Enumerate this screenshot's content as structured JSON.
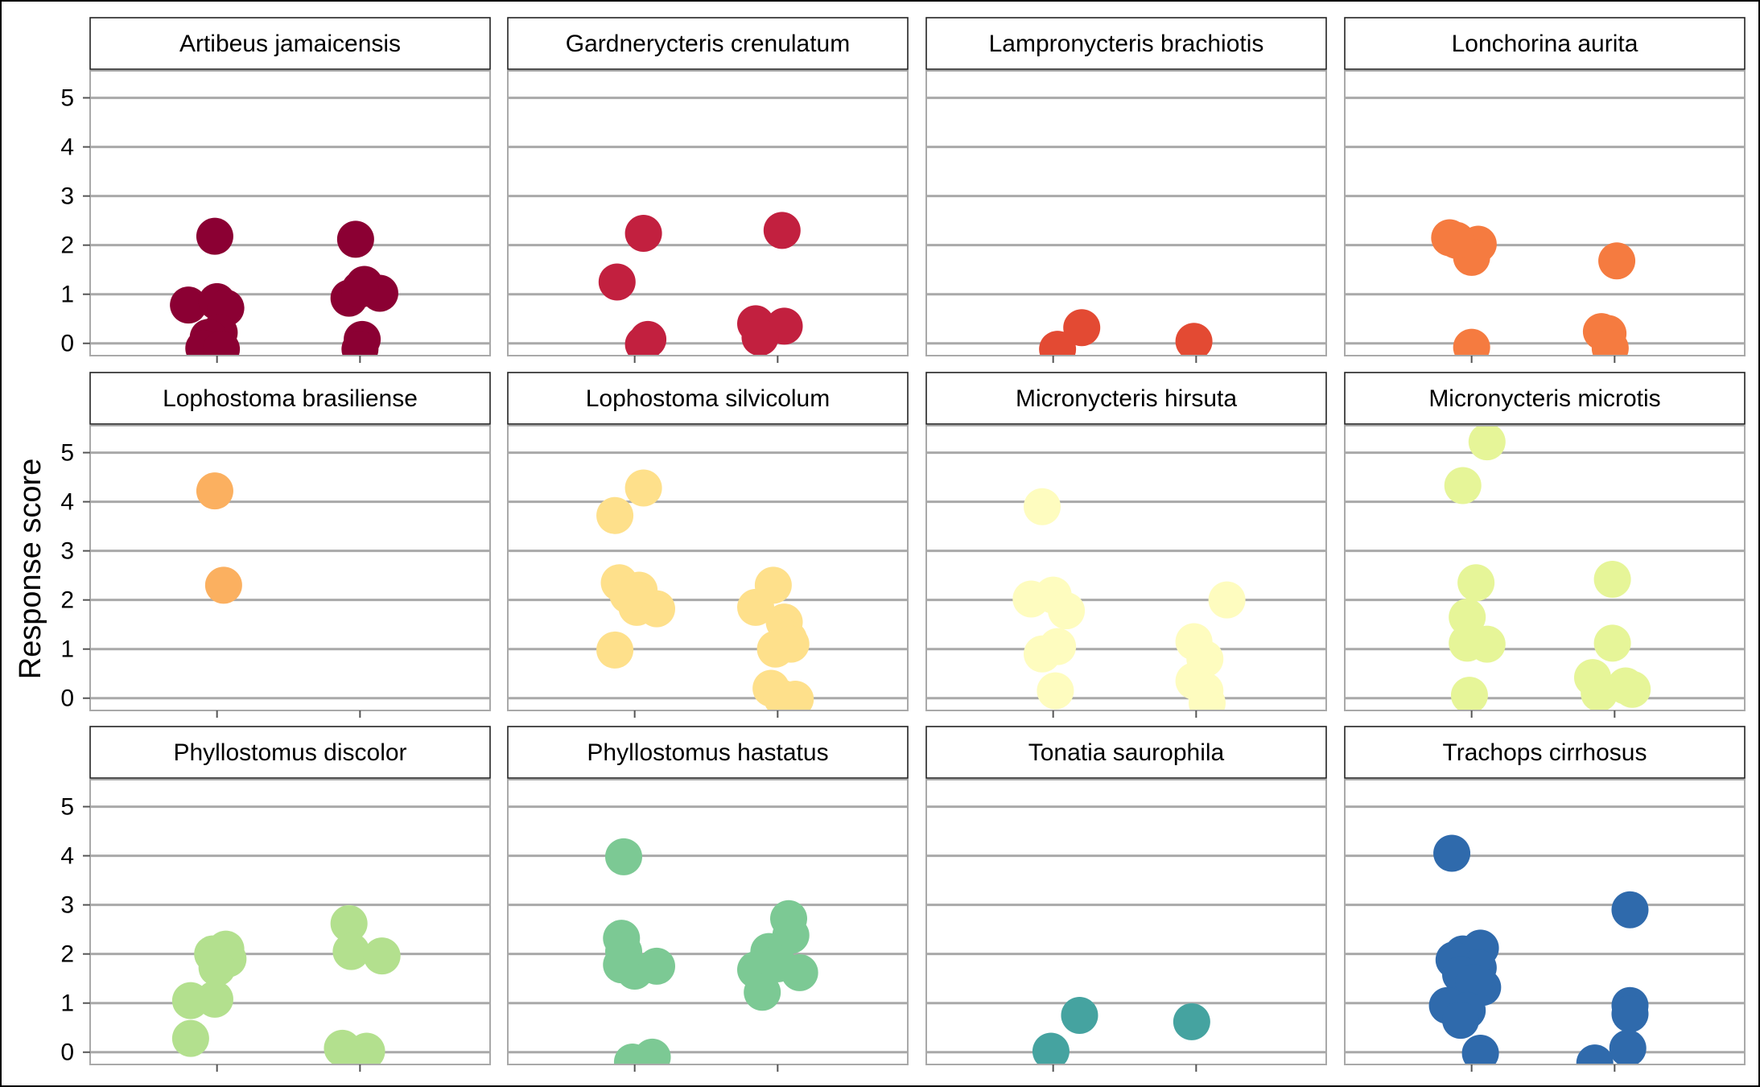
{
  "chart_data": {
    "type": "scatter",
    "ylabel": "Response score",
    "xlabel": "",
    "ylim": [
      -0.25,
      5.55
    ],
    "y_ticks": [
      0,
      1,
      2,
      3,
      4,
      5
    ],
    "x_positions": 2,
    "grid": "horizontal",
    "layout": {
      "rows": 3,
      "cols": 4
    },
    "panels": [
      {
        "title": "Artibeus jamaicensis",
        "color": "#8b0033",
        "groups": [
          [
            [
              -0.01,
              2.18
            ],
            [
              -0.13,
              0.78
            ],
            [
              0.0,
              0.85
            ],
            [
              0.04,
              0.72
            ],
            [
              0.01,
              0.22
            ],
            [
              -0.04,
              0.12
            ],
            [
              -0.06,
              -0.1
            ],
            [
              0.02,
              -0.12
            ]
          ],
          [
            [
              -0.02,
              2.12
            ],
            [
              0.02,
              1.2
            ],
            [
              0.09,
              1.02
            ],
            [
              -0.05,
              0.92
            ],
            [
              0.0,
              1.1
            ],
            [
              0.01,
              0.08
            ],
            [
              0.0,
              -0.12
            ]
          ]
        ]
      },
      {
        "title": "Gardnerycteris crenulatum",
        "color": "#c2203f",
        "groups": [
          [
            [
              0.04,
              2.24
            ],
            [
              -0.08,
              1.25
            ],
            [
              0.06,
              0.08
            ],
            [
              0.04,
              -0.02
            ]
          ],
          [
            [
              0.02,
              2.3
            ],
            [
              -0.1,
              0.4
            ],
            [
              0.03,
              0.35
            ],
            [
              -0.08,
              0.12
            ]
          ]
        ]
      },
      {
        "title": "Lampronycteris brachiotis",
        "color": "#e34a33",
        "groups": [
          [
            [
              0.13,
              0.32
            ],
            [
              0.02,
              -0.12
            ]
          ],
          [
            [
              -0.01,
              0.04
            ]
          ]
        ]
      },
      {
        "title": "Lonchorina aurita",
        "color": "#f57b40",
        "groups": [
          [
            [
              -0.1,
              2.15
            ],
            [
              0.03,
              2.02
            ],
            [
              0.0,
              1.75
            ],
            [
              -0.07,
              2.1
            ],
            [
              0.0,
              -0.08
            ]
          ],
          [
            [
              0.01,
              1.68
            ],
            [
              -0.06,
              0.24
            ],
            [
              -0.03,
              0.2
            ],
            [
              -0.02,
              -0.1
            ]
          ]
        ]
      },
      {
        "title": "Lophostoma brasiliense",
        "color": "#fbb060",
        "groups": [
          [
            [
              -0.01,
              4.22
            ],
            [
              0.03,
              2.3
            ]
          ],
          []
        ]
      },
      {
        "title": "Lophostoma silvicolum",
        "color": "#fee08b",
        "groups": [
          [
            [
              0.04,
              4.28
            ],
            [
              -0.09,
              3.72
            ],
            [
              -0.07,
              2.35
            ],
            [
              0.02,
              2.2
            ],
            [
              0.01,
              1.85
            ],
            [
              0.1,
              1.82
            ],
            [
              -0.03,
              2.1
            ],
            [
              -0.09,
              0.98
            ]
          ],
          [
            [
              -0.02,
              2.3
            ],
            [
              -0.1,
              1.85
            ],
            [
              0.03,
              1.55
            ],
            [
              0.05,
              1.2
            ],
            [
              -0.01,
              1.0
            ],
            [
              0.06,
              1.1
            ],
            [
              -0.03,
              0.2
            ],
            [
              0.02,
              0.0
            ],
            [
              0.08,
              -0.02
            ]
          ]
        ]
      },
      {
        "title": "Micronycteris hirsuta",
        "color": "#fefcbf",
        "groups": [
          [
            [
              -0.05,
              3.9
            ],
            [
              -0.1,
              2.02
            ],
            [
              0.0,
              2.1
            ],
            [
              0.06,
              1.78
            ],
            [
              0.02,
              1.05
            ],
            [
              -0.05,
              0.9
            ],
            [
              0.01,
              0.15
            ]
          ],
          [
            [
              0.14,
              2.0
            ],
            [
              -0.01,
              1.15
            ],
            [
              0.04,
              0.8
            ],
            [
              -0.01,
              0.35
            ],
            [
              0.04,
              0.15
            ],
            [
              0.05,
              -0.1
            ]
          ]
        ]
      },
      {
        "title": "Micronycteris microtis",
        "color": "#e6f598",
        "groups": [
          [
            [
              0.07,
              5.22
            ],
            [
              -0.04,
              4.33
            ],
            [
              0.02,
              2.35
            ],
            [
              -0.02,
              1.65
            ],
            [
              -0.02,
              1.12
            ],
            [
              0.07,
              1.1
            ],
            [
              -0.01,
              0.06
            ]
          ],
          [
            [
              -0.01,
              2.42
            ],
            [
              -0.01,
              1.12
            ],
            [
              -0.1,
              0.42
            ],
            [
              0.05,
              0.25
            ],
            [
              0.08,
              0.18
            ],
            [
              -0.07,
              0.1
            ]
          ]
        ]
      },
      {
        "title": "Phyllostomus discolor",
        "color": "#b3e08e",
        "groups": [
          [
            [
              -0.02,
              2.0
            ],
            [
              0.04,
              2.1
            ],
            [
              0.05,
              1.9
            ],
            [
              0.0,
              1.72
            ],
            [
              -0.12,
              1.05
            ],
            [
              -0.01,
              1.08
            ],
            [
              -0.12,
              0.28
            ]
          ],
          [
            [
              -0.05,
              2.62
            ],
            [
              -0.04,
              2.05
            ],
            [
              0.1,
              1.96
            ],
            [
              -0.08,
              0.08
            ],
            [
              0.03,
              0.02
            ],
            [
              0.01,
              -0.05
            ]
          ]
        ]
      },
      {
        "title": "Phyllostomus hastatus",
        "color": "#7cc994",
        "groups": [
          [
            [
              -0.05,
              3.98
            ],
            [
              -0.06,
              2.32
            ],
            [
              -0.05,
              2.05
            ],
            [
              -0.06,
              1.78
            ],
            [
              0.0,
              1.65
            ],
            [
              0.1,
              1.75
            ],
            [
              0.08,
              -0.1
            ],
            [
              -0.01,
              -0.2
            ]
          ],
          [
            [
              0.05,
              2.72
            ],
            [
              0.06,
              2.38
            ],
            [
              -0.04,
              2.05
            ],
            [
              -0.1,
              1.68
            ],
            [
              0.0,
              1.8
            ],
            [
              0.1,
              1.62
            ],
            [
              -0.07,
              1.22
            ]
          ]
        ]
      },
      {
        "title": "Tonatia saurophila",
        "color": "#45a3a0",
        "groups": [
          [
            [
              -0.01,
              0.02
            ],
            [
              0.12,
              0.75
            ]
          ],
          [
            [
              -0.02,
              0.62
            ]
          ]
        ]
      },
      {
        "title": "Trachops cirrhosus",
        "color": "#2f6aac",
        "groups": [
          [
            [
              -0.09,
              4.05
            ],
            [
              0.04,
              2.12
            ],
            [
              -0.04,
              2.0
            ],
            [
              -0.08,
              1.88
            ],
            [
              0.03,
              1.72
            ],
            [
              -0.05,
              1.58
            ],
            [
              0.05,
              1.32
            ],
            [
              0.01,
              1.42
            ],
            [
              -0.11,
              0.95
            ],
            [
              -0.02,
              0.85
            ],
            [
              -0.05,
              0.65
            ],
            [
              0.04,
              -0.02
            ]
          ],
          [
            [
              0.07,
              2.9
            ],
            [
              0.07,
              0.95
            ],
            [
              0.07,
              0.78
            ],
            [
              0.06,
              0.08
            ],
            [
              -0.09,
              -0.22
            ]
          ]
        ]
      }
    ]
  }
}
